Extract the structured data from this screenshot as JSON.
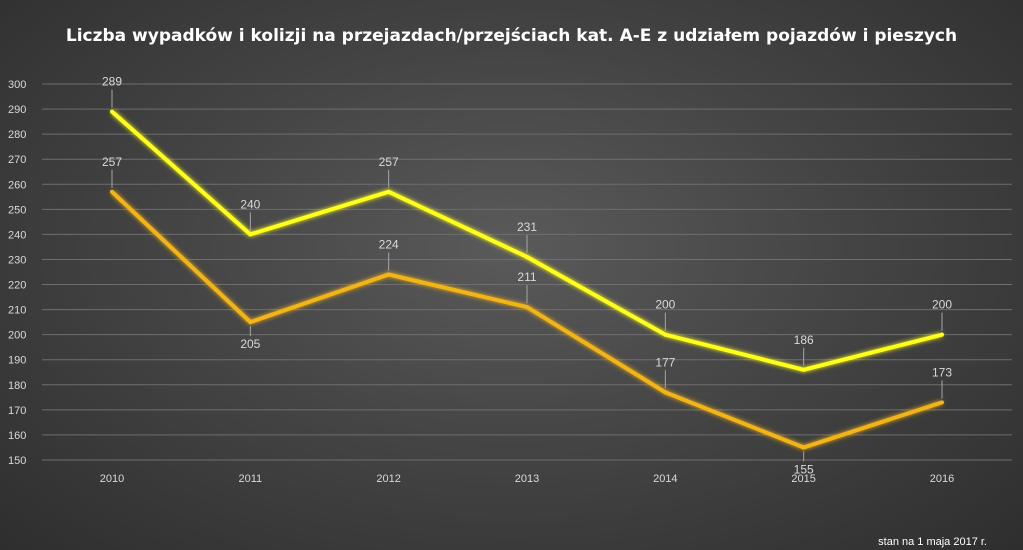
{
  "chart_data": {
    "type": "line",
    "title": "Liczba wypadków i kolizji na przejazdach/przejściach kat. A-E z udziałem pojazdów i pieszych",
    "categories": [
      "2010",
      "2011",
      "2012",
      "2013",
      "2014",
      "2015",
      "2016"
    ],
    "series": [
      {
        "values": [
          289,
          240,
          257,
          231,
          200,
          186,
          200
        ],
        "color": "#ffff1a"
      },
      {
        "values": [
          257,
          205,
          224,
          211,
          177,
          155,
          173
        ],
        "color": "#f2b418"
      }
    ],
    "ylim": [
      150,
      300
    ],
    "yticks": [
      150,
      160,
      170,
      180,
      190,
      200,
      210,
      220,
      230,
      240,
      250,
      260,
      270,
      280,
      290,
      300
    ],
    "grid": true,
    "data_labels": true
  },
  "footnote": "stan na 1 maja 2017 r."
}
